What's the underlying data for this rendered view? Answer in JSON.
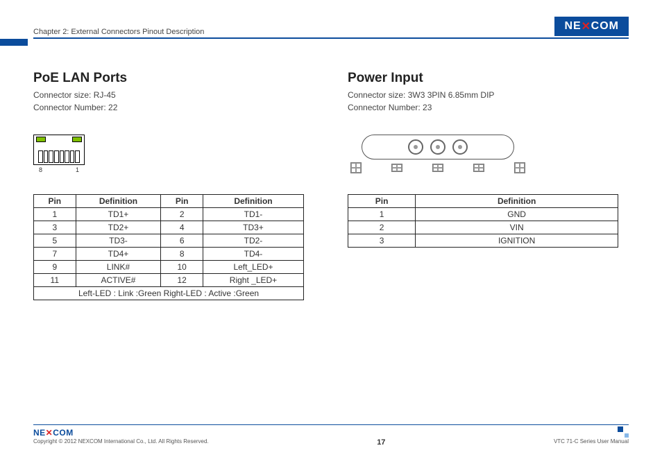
{
  "header": {
    "chapter": "Chapter 2: External Connectors Pinout Description",
    "logo": "NE COM",
    "logo_parts": {
      "pre": "NE",
      "post": "COM"
    }
  },
  "colors": {
    "brand_blue": "#0b4c9c",
    "led_green": "#7fc000",
    "text": "#333333",
    "border": "#222222"
  },
  "left": {
    "title": "PoE LAN Ports",
    "size_label": "Connector size: RJ-45",
    "number_label": "Connector Number: 22",
    "diagram": {
      "type": "rj45",
      "pin_count": 8,
      "pin_left_label": "8",
      "pin_right_label": "1",
      "led_color": "#7fc000"
    },
    "table": {
      "headers": [
        "Pin",
        "Definition",
        "Pin",
        "Definition"
      ],
      "rows": [
        [
          "1",
          "TD1+",
          "2",
          "TD1-"
        ],
        [
          "3",
          "TD2+",
          "4",
          "TD3+"
        ],
        [
          "5",
          "TD3-",
          "6",
          "TD2-"
        ],
        [
          "7",
          "TD4+",
          "8",
          "TD4-"
        ],
        [
          "9",
          "LINK#",
          "10",
          "Left_LED+"
        ],
        [
          "11",
          "ACTIVE#",
          "12",
          "Right _LED+"
        ]
      ],
      "footer": "Left-LED : Link :Green   Right-LED : Active :Green"
    }
  },
  "right": {
    "title": "Power Input",
    "size_label": "Connector size: 3W3 3PIN 6.85mm DIP",
    "number_label": "Connector Number: 23",
    "diagram": {
      "type": "3w3",
      "big_pins": 3,
      "bottom_boxes": 5
    },
    "table": {
      "headers": [
        "Pin",
        "Definition"
      ],
      "rows": [
        [
          "1",
          "GND"
        ],
        [
          "2",
          "VIN"
        ],
        [
          "3",
          "IGNITION"
        ]
      ]
    }
  },
  "footer": {
    "logo": "NE COM",
    "logo_parts": {
      "pre": "NE",
      "post": "COM"
    },
    "copyright": "Copyright © 2012 NEXCOM International Co., Ltd. All Rights Reserved.",
    "page": "17",
    "manual": "VTC 71-C Series User Manual"
  }
}
